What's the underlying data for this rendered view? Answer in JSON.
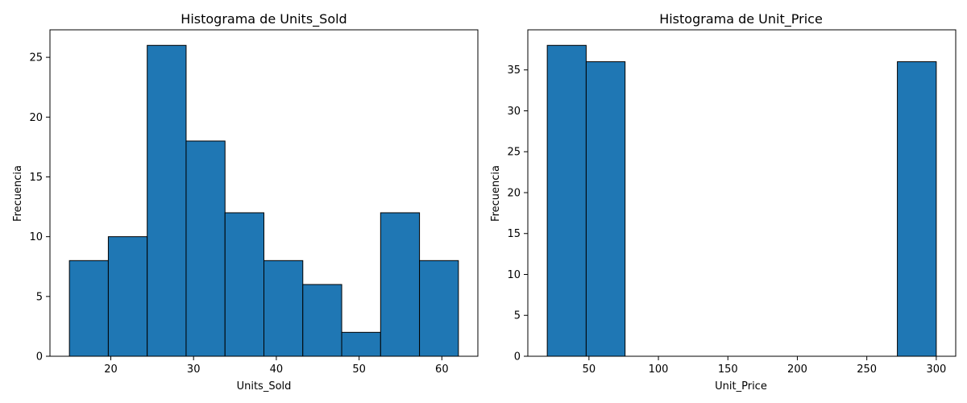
{
  "chart_data": [
    {
      "type": "bar",
      "title": "Histograma de Units_Sold",
      "xlabel": "Units_Sold",
      "ylabel": "Frecuencia",
      "bin_edges": [
        15,
        19.7,
        24.4,
        29.1,
        33.8,
        38.5,
        43.2,
        47.9,
        52.6,
        57.3,
        62
      ],
      "values": [
        8,
        10,
        26,
        18,
        12,
        8,
        6,
        2,
        12,
        8
      ],
      "xlim": [
        12.65,
        64.35
      ],
      "ylim": [
        0,
        27.3
      ],
      "xticks": [
        20,
        30,
        40,
        50,
        60
      ],
      "yticks": [
        0,
        5,
        10,
        15,
        20,
        25
      ],
      "bar_color": "#1f77b4",
      "edge_color": "#000000",
      "grid": false
    },
    {
      "type": "bar",
      "title": "Histograma de Unit_Price",
      "xlabel": "Unit_Price",
      "ylabel": "Frecuencia",
      "bin_edges": [
        20,
        48,
        76,
        104,
        132,
        160,
        188,
        216,
        244,
        272,
        300
      ],
      "values": [
        38,
        36,
        0,
        0,
        0,
        0,
        0,
        0,
        0,
        36
      ],
      "xlim": [
        6,
        314
      ],
      "ylim": [
        0,
        39.9
      ],
      "xticks": [
        50,
        100,
        150,
        200,
        250,
        300
      ],
      "yticks": [
        0,
        5,
        10,
        15,
        20,
        25,
        30,
        35
      ],
      "bar_color": "#1f77b4",
      "edge_color": "#000000",
      "grid": false
    }
  ]
}
